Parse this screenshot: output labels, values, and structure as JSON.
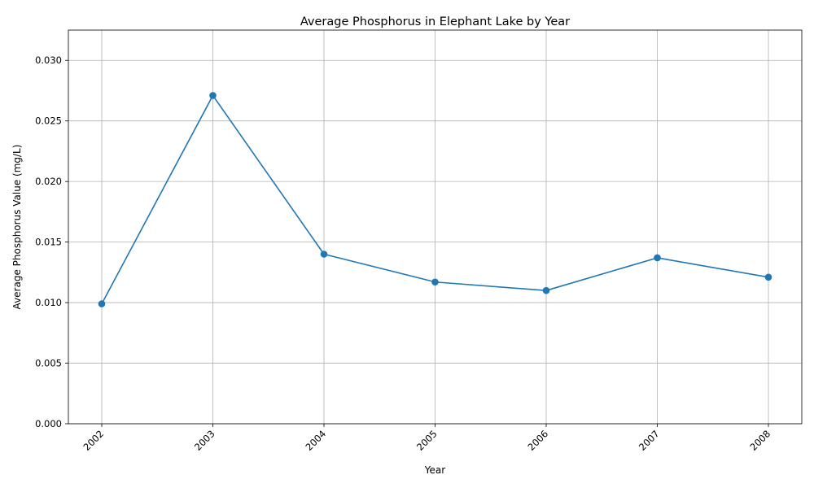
{
  "chart_data": {
    "type": "line",
    "title": "Average Phosphorus in Elephant Lake by Year",
    "xlabel": "Year",
    "ylabel": "Average Phosphorus Value (mg/L)",
    "x": [
      "2002",
      "2003",
      "2004",
      "2005",
      "2006",
      "2007",
      "2008"
    ],
    "series": [
      {
        "values": [
          0.0099,
          0.0271,
          0.014,
          0.0117,
          0.011,
          0.0137,
          0.0121
        ],
        "color": "#1f77b4",
        "marker": "circle"
      }
    ],
    "ylim": [
      0,
      0.0325
    ],
    "yticks": [
      0.0,
      0.005,
      0.01,
      0.015,
      0.02,
      0.025,
      0.03
    ],
    "ytick_labels": [
      "0.000",
      "0.005",
      "0.010",
      "0.015",
      "0.020",
      "0.025",
      "0.030"
    ],
    "grid": true,
    "legend": "none",
    "xtick_rotation": "45-degree"
  }
}
